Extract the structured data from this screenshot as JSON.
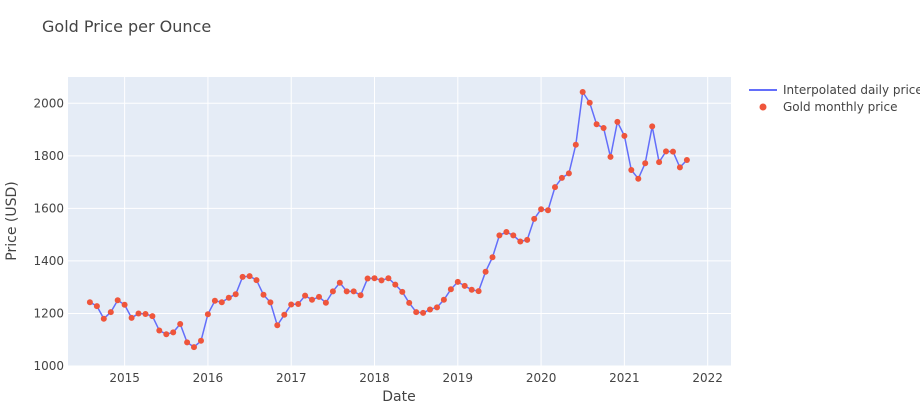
{
  "chart_data": {
    "type": "line",
    "title": "Gold Price per Ounce",
    "xlabel": "Date",
    "ylabel": "Price (USD)",
    "ylim": [
      1000,
      2100
    ],
    "xlim": [
      2014.32,
      2022.28
    ],
    "x_ticks": [
      "2015",
      "2016",
      "2017",
      "2018",
      "2019",
      "2020",
      "2021",
      "2022"
    ],
    "y_ticks": [
      "1000",
      "1200",
      "1400",
      "1600",
      "1800",
      "2000"
    ],
    "grid": true,
    "legend": "top-right",
    "colors": {
      "line": "#636efa",
      "markers": "#ef553b",
      "plot_bg": "#e5ecf6",
      "grid": "#ffffff"
    },
    "series": [
      {
        "name": "Interpolated daily price",
        "mode": "line"
      },
      {
        "name": "Gold monthly price",
        "mode": "markers"
      }
    ],
    "monthly": [
      [
        "2014-08",
        1243
      ],
      [
        "2014-09",
        1228
      ],
      [
        "2014-10",
        1180
      ],
      [
        "2014-11",
        1205
      ],
      [
        "2014-12",
        1250
      ],
      [
        "2015-01",
        1233
      ],
      [
        "2015-02",
        1183
      ],
      [
        "2015-03",
        1200
      ],
      [
        "2015-04",
        1198
      ],
      [
        "2015-05",
        1190
      ],
      [
        "2015-06",
        1135
      ],
      [
        "2015-07",
        1121
      ],
      [
        "2015-08",
        1128
      ],
      [
        "2015-09",
        1160
      ],
      [
        "2015-10",
        1090
      ],
      [
        "2015-11",
        1072
      ],
      [
        "2015-12",
        1096
      ],
      [
        "2016-01",
        1197
      ],
      [
        "2016-02",
        1248
      ],
      [
        "2016-03",
        1243
      ],
      [
        "2016-04",
        1260
      ],
      [
        "2016-05",
        1273
      ],
      [
        "2016-06",
        1339
      ],
      [
        "2016-07",
        1342
      ],
      [
        "2016-08",
        1327
      ],
      [
        "2016-09",
        1271
      ],
      [
        "2016-10",
        1242
      ],
      [
        "2016-11",
        1155
      ],
      [
        "2016-12",
        1195
      ],
      [
        "2017-01",
        1234
      ],
      [
        "2017-02",
        1236
      ],
      [
        "2017-03",
        1268
      ],
      [
        "2017-04",
        1252
      ],
      [
        "2017-05",
        1263
      ],
      [
        "2017-06",
        1241
      ],
      [
        "2017-07",
        1284
      ],
      [
        "2017-08",
        1317
      ],
      [
        "2017-09",
        1284
      ],
      [
        "2017-10",
        1284
      ],
      [
        "2017-11",
        1269
      ],
      [
        "2017-12",
        1333
      ],
      [
        "2018-01",
        1334
      ],
      [
        "2018-02",
        1326
      ],
      [
        "2018-03",
        1334
      ],
      [
        "2018-04",
        1310
      ],
      [
        "2018-05",
        1282
      ],
      [
        "2018-06",
        1240
      ],
      [
        "2018-07",
        1205
      ],
      [
        "2018-08",
        1202
      ],
      [
        "2018-09",
        1215
      ],
      [
        "2018-10",
        1223
      ],
      [
        "2018-11",
        1252
      ],
      [
        "2018-12",
        1292
      ],
      [
        "2019-01",
        1320
      ],
      [
        "2019-02",
        1305
      ],
      [
        "2019-03",
        1290
      ],
      [
        "2019-04",
        1285
      ],
      [
        "2019-05",
        1359
      ],
      [
        "2019-06",
        1414
      ],
      [
        "2019-07",
        1497
      ],
      [
        "2019-08",
        1510
      ],
      [
        "2019-09",
        1497
      ],
      [
        "2019-10",
        1474
      ],
      [
        "2019-11",
        1480
      ],
      [
        "2019-12",
        1560
      ],
      [
        "2020-01",
        1597
      ],
      [
        "2020-02",
        1593
      ],
      [
        "2020-03",
        1681
      ],
      [
        "2020-04",
        1716
      ],
      [
        "2020-05",
        1733
      ],
      [
        "2020-06",
        1842
      ],
      [
        "2020-07",
        2043
      ],
      [
        "2020-08",
        2002
      ],
      [
        "2020-09",
        1920
      ],
      [
        "2020-10",
        1906
      ],
      [
        "2020-11",
        1796
      ],
      [
        "2020-12",
        1929
      ],
      [
        "2021-01",
        1876
      ],
      [
        "2021-02",
        1746
      ],
      [
        "2021-03",
        1713
      ],
      [
        "2021-04",
        1772
      ],
      [
        "2021-05",
        1912
      ],
      [
        "2021-06",
        1776
      ],
      [
        "2021-07",
        1817
      ],
      [
        "2021-08",
        1816
      ],
      [
        "2021-09",
        1756
      ],
      [
        "2021-10",
        1784
      ]
    ]
  }
}
